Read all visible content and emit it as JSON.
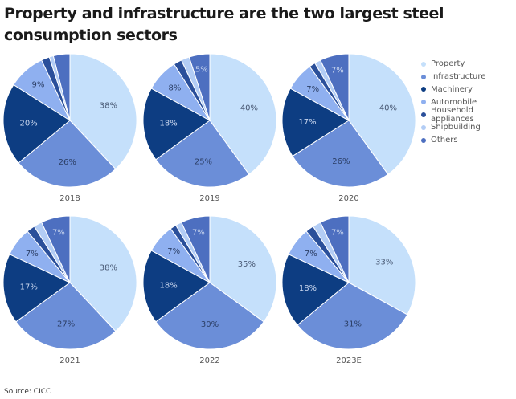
{
  "title": "Property and infrastructure are the two largest steel consumption sectors",
  "source": "Source: CICC",
  "legend": [
    {
      "label": "Property",
      "color": "#c5e0fb"
    },
    {
      "label": "Infrastructure",
      "color": "#6b8ed8"
    },
    {
      "label": "Machinery",
      "color": "#0d3d82"
    },
    {
      "label": "Automobile",
      "color": "#8fb0f0"
    },
    {
      "label": "Household appliances",
      "color": "#2a4f9a"
    },
    {
      "label": "Shipbuilding",
      "color": "#b3cdf5"
    },
    {
      "label": "Others",
      "color": "#4d6fc0"
    }
  ],
  "chart_data": {
    "type": "pie",
    "title": "Property and infrastructure are the two largest steel consumption sectors",
    "categories": [
      "Property",
      "Infrastructure",
      "Machinery",
      "Automobile",
      "Household appliances",
      "Shipbuilding",
      "Others"
    ],
    "legend_position": "right",
    "unit": "%",
    "pies": [
      {
        "name": "2018",
        "values": [
          38,
          26,
          20,
          9,
          2,
          1,
          4
        ],
        "labels": [
          "38%",
          "26%",
          "20%",
          "9%",
          "",
          "",
          ""
        ]
      },
      {
        "name": "2019",
        "values": [
          40,
          25,
          18,
          8,
          2,
          2,
          5
        ],
        "labels": [
          "40%",
          "25%",
          "18%",
          "8%",
          "",
          "",
          "5%"
        ]
      },
      {
        "name": "2020",
        "values": [
          40,
          26,
          17,
          7,
          1.5,
          1.5,
          7
        ],
        "labels": [
          "40%",
          "26%",
          "17%",
          "7%",
          "",
          "",
          "7%"
        ]
      },
      {
        "name": "2021",
        "values": [
          38,
          27,
          17,
          7,
          2,
          2,
          7
        ],
        "labels": [
          "38%",
          "27%",
          "17%",
          "7%",
          "",
          "",
          "7%"
        ]
      },
      {
        "name": "2022",
        "values": [
          35,
          30,
          18,
          7,
          1.5,
          1.5,
          7
        ],
        "labels": [
          "35%",
          "30%",
          "18%",
          "7%",
          "",
          "",
          "7%"
        ]
      },
      {
        "name": "2023E",
        "values": [
          33,
          31,
          18,
          7,
          2,
          2,
          7
        ],
        "labels": [
          "33%",
          "31%",
          "18%",
          "7%",
          "",
          "",
          "7%"
        ]
      }
    ],
    "label_colors": [
      "#4a5a75",
      "#2c3f66",
      "#c9d6ee",
      "#2c3f66",
      "#ffffff",
      "#ffffff",
      "#c9d6ee"
    ]
  }
}
